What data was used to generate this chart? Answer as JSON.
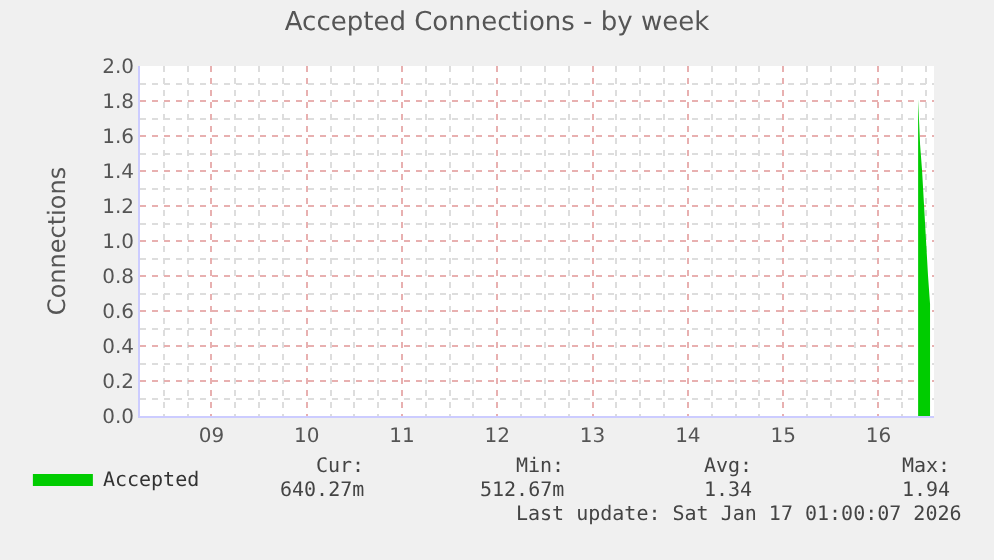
{
  "chart_data": {
    "type": "area",
    "title": "Accepted Connections - by week",
    "ylabel": "Connections",
    "x": [
      "2026-01-16T22:00",
      "2026-01-16T22:30",
      "2026-01-16T23:00",
      "2026-01-16T23:30",
      "2026-01-17T00:00",
      "2026-01-17T00:30",
      "2026-01-17T01:00"
    ],
    "series": [
      {
        "name": "Accepted",
        "color": "#00cc00",
        "values": [
          1.81,
          1.55,
          1.4,
          1.2,
          1.0,
          0.8,
          0.64
        ]
      }
    ],
    "xlim": [
      "2026-01-08T18:00",
      "2026-01-17T02:00"
    ],
    "xticks": [
      {
        "value": "2026-01-09T12:00",
        "label": "09"
      },
      {
        "value": "2026-01-10T12:00",
        "label": "10"
      },
      {
        "value": "2026-01-11T12:00",
        "label": "11"
      },
      {
        "value": "2026-01-12T12:00",
        "label": "12"
      },
      {
        "value": "2026-01-13T12:00",
        "label": "13"
      },
      {
        "value": "2026-01-14T12:00",
        "label": "14"
      },
      {
        "value": "2026-01-15T12:00",
        "label": "15"
      },
      {
        "value": "2026-01-16T12:00",
        "label": "16"
      }
    ],
    "ylim": [
      0,
      2.0
    ],
    "yticks": [
      {
        "value": 0,
        "label": "0.0"
      },
      {
        "value": 0.2,
        "label": "0.2"
      },
      {
        "value": 0.4,
        "label": "0.4"
      },
      {
        "value": 0.6,
        "label": "0.6"
      },
      {
        "value": 0.8,
        "label": "0.8"
      },
      {
        "value": 1.0,
        "label": "1.0"
      },
      {
        "value": 1.2,
        "label": "1.2"
      },
      {
        "value": 1.4,
        "label": "1.4"
      },
      {
        "value": 1.6,
        "label": "1.6"
      },
      {
        "value": 1.8,
        "label": "1.8"
      },
      {
        "value": 2.0,
        "label": "2.0"
      }
    ],
    "grid": true,
    "legend": "bottom left",
    "annotations": [
      "Cur:",
      "Min:",
      "Avg:",
      "Max:",
      "640.27m",
      "512.67m",
      "1.34",
      "1.94",
      "Last update: Sat Jan 17 01:00:07 2026"
    ]
  }
}
